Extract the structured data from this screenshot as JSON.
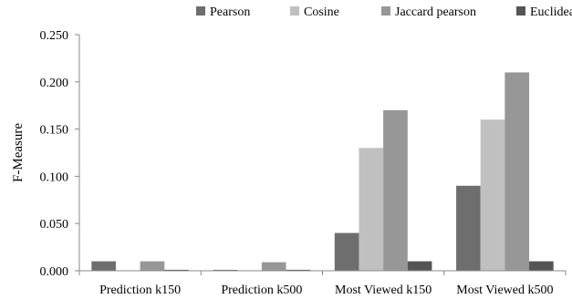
{
  "chart_data": {
    "type": "bar",
    "title": "",
    "xlabel": "",
    "ylabel": "F-Measure",
    "ylim": [
      0,
      0.25
    ],
    "yticks": [
      "0.000",
      "0.050",
      "0.100",
      "0.150",
      "0.200",
      "0.250"
    ],
    "grid": false,
    "legend_position": "top",
    "categories": [
      "Prediction k150",
      "Prediction k500",
      "Most Viewed k150",
      "Most Viewed k500"
    ],
    "series": [
      {
        "name": "Pearson",
        "color": "#6e6e6e",
        "values": [
          0.01,
          0.001,
          0.04,
          0.09
        ]
      },
      {
        "name": "Cosine",
        "color": "#c0c0c0",
        "values": [
          0.0,
          0.0,
          0.13,
          0.16
        ]
      },
      {
        "name": "Jaccard pearson",
        "color": "#979797",
        "values": [
          0.01,
          0.009,
          0.17,
          0.21
        ]
      },
      {
        "name": "Euclidean",
        "color": "#555555",
        "values": [
          0.001,
          0.001,
          0.01,
          0.01
        ]
      }
    ]
  }
}
